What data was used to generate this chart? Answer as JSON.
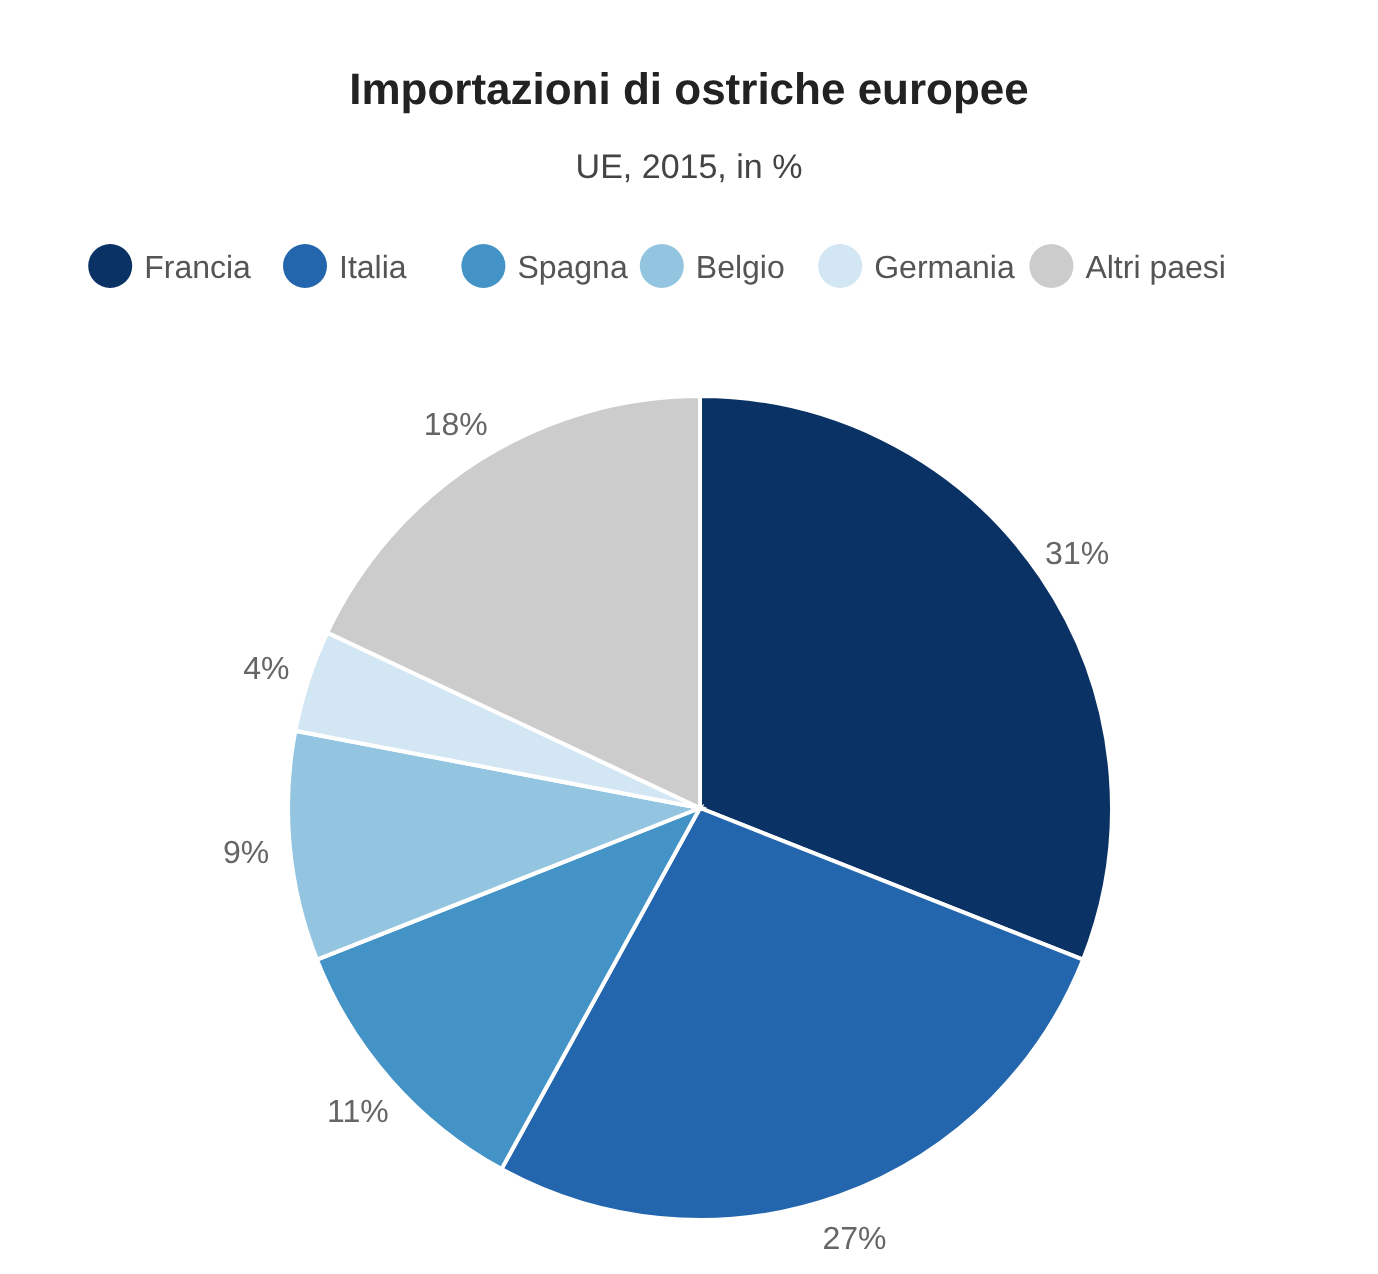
{
  "chart_data": {
    "type": "pie",
    "title": "Importazioni di ostriche europee",
    "subtitle": "UE, 2015, in %",
    "categories": [
      "Francia",
      "Italia",
      "Spagna",
      "Belgio",
      "Germania",
      "Altri paesi"
    ],
    "values": [
      31,
      27,
      11,
      9,
      4,
      18
    ],
    "colors": [
      "#0b3264",
      "#2366ad",
      "#4493c6",
      "#93c5e0",
      "#d3e6f3",
      "#cccccc"
    ],
    "value_labels": [
      "31%",
      "27%",
      "11%",
      "9%",
      "4%",
      "18%"
    ],
    "legend": "top"
  }
}
